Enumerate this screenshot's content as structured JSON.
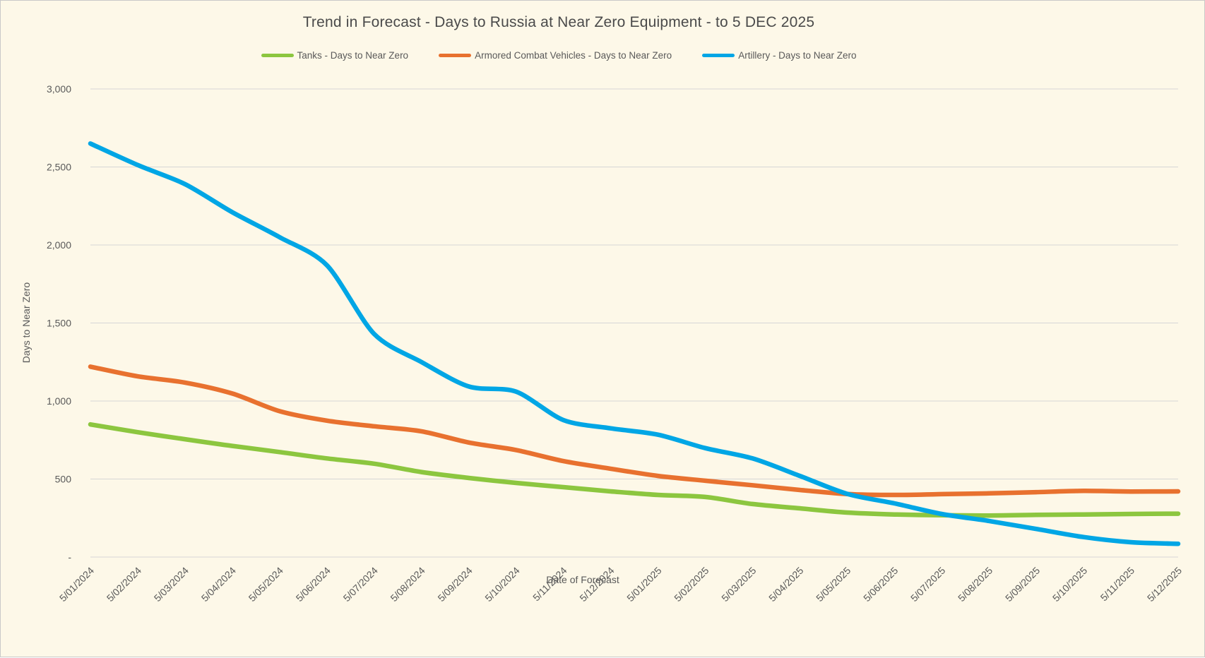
{
  "title": "Trend in Forecast - Days to Russia at Near Zero Equipment - to 5 DEC 2025",
  "colors": {
    "background": "#FDF8E8",
    "frame_border": "#C9C9C9",
    "grid": "#D6D6D6",
    "text": "#595959",
    "title_text": "#4A4A4A"
  },
  "chart_data": {
    "type": "line",
    "title": "Trend in Forecast - Days to Russia at Near Zero Equipment - to 5 DEC 2025",
    "xlabel": "Date of Forecast",
    "ylabel": "Days to Near Zero",
    "ylim": [
      0,
      3000
    ],
    "grid": "horizontal",
    "legend_position": "top",
    "y_ticks": [
      {
        "value": 0,
        "label": "-"
      },
      {
        "value": 500,
        "label": "500"
      },
      {
        "value": 1000,
        "label": "1,000"
      },
      {
        "value": 1500,
        "label": "1,500"
      },
      {
        "value": 2000,
        "label": "2,000"
      },
      {
        "value": 2500,
        "label": "2,500"
      },
      {
        "value": 3000,
        "label": "3,000"
      }
    ],
    "x_labels": [
      "5/01/2024",
      "5/02/2024",
      "5/03/2024",
      "5/04/2024",
      "5/05/2024",
      "5/06/2024",
      "5/07/2024",
      "5/08/2024",
      "5/09/2024",
      "5/10/2024",
      "5/11/2024",
      "5/12/2024",
      "5/01/2025",
      "5/02/2025",
      "5/03/2025",
      "5/04/2025",
      "5/05/2025",
      "5/06/2025",
      "5/07/2025",
      "5/08/2025",
      "5/09/2025",
      "5/10/2025",
      "5/11/2025",
      "5/12/2025"
    ],
    "series": [
      {
        "name": "Tanks - Days to Near Zero",
        "color": "#8CC63F",
        "values": [
          850,
          800,
          755,
          712,
          673,
          632,
          598,
          545,
          507,
          475,
          448,
          421,
          398,
          385,
          340,
          312,
          285,
          273,
          268,
          266,
          270,
          273,
          276,
          278
        ]
      },
      {
        "name": "Armored Combat Vehicles - Days to Near Zero",
        "color": "#E8712F",
        "values": [
          1220,
          1158,
          1118,
          1048,
          935,
          874,
          838,
          806,
          734,
          686,
          615,
          566,
          520,
          489,
          460,
          430,
          404,
          398,
          403,
          408,
          416,
          424,
          420,
          421
        ]
      },
      {
        "name": "Artillery - Days to Near Zero",
        "color": "#00A6E5",
        "values": [
          2650,
          2512,
          2390,
          2210,
          2050,
          1870,
          1430,
          1250,
          1093,
          1060,
          878,
          825,
          784,
          698,
          632,
          520,
          405,
          344,
          276,
          231,
          180,
          128,
          95,
          85
        ]
      }
    ]
  }
}
